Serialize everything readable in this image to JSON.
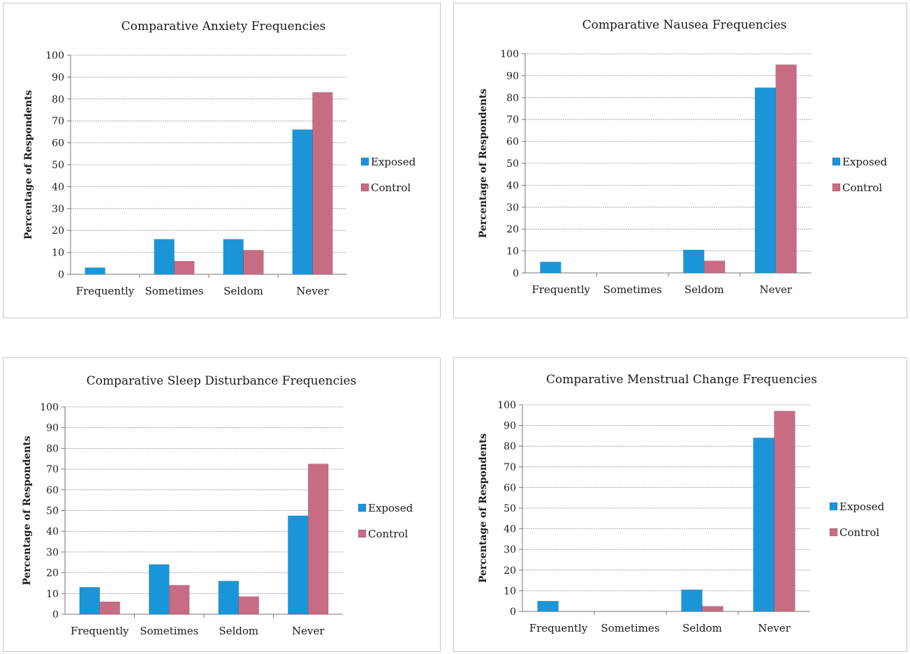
{
  "colors": {
    "exposed": "#1a96d8",
    "control": "#c86c86",
    "grid": "#9a9aaa",
    "axis": "#777777"
  },
  "chart_data": [
    {
      "type": "bar",
      "title": "Comparative Anxiety Frequencies",
      "ylabel": "Percentage of Respondents",
      "xlabel": "",
      "categories": [
        "Frequently",
        "Sometimes",
        "Seldom",
        "Never"
      ],
      "ylim": [
        0,
        100
      ],
      "yticks": [
        0,
        10,
        20,
        30,
        40,
        50,
        60,
        70,
        80,
        90,
        100
      ],
      "grid": true,
      "legend": "right",
      "series": [
        {
          "name": "Exposed",
          "values": [
            3,
            16,
            16,
            66
          ]
        },
        {
          "name": "Control",
          "values": [
            0,
            6,
            11,
            83
          ]
        }
      ]
    },
    {
      "type": "bar",
      "title": "Comparative Nausea Frequencies",
      "ylabel": "Percentage of Respondents",
      "xlabel": "",
      "categories": [
        "Frequently",
        "Sometimes",
        "Seldom",
        "Never"
      ],
      "ylim": [
        0,
        100
      ],
      "yticks": [
        0,
        10,
        20,
        30,
        40,
        50,
        60,
        70,
        80,
        90,
        100
      ],
      "grid": true,
      "legend": "right",
      "series": [
        {
          "name": "Exposed",
          "values": [
            5,
            0,
            10.5,
            84.5
          ]
        },
        {
          "name": "Control",
          "values": [
            0,
            0,
            5.5,
            95
          ]
        }
      ]
    },
    {
      "type": "bar",
      "title": "Comparative Sleep Disturbance Frequencies",
      "ylabel": "Percentage of Respondents",
      "xlabel": "",
      "categories": [
        "Frequently",
        "Sometimes",
        "Seldom",
        "Never"
      ],
      "ylim": [
        0,
        100
      ],
      "yticks": [
        0,
        10,
        20,
        30,
        40,
        50,
        60,
        70,
        80,
        90,
        100
      ],
      "grid": true,
      "legend": "right",
      "series": [
        {
          "name": "Exposed",
          "values": [
            13,
            24,
            16,
            47.5
          ]
        },
        {
          "name": "Control",
          "values": [
            6,
            14,
            8.5,
            72.5
          ]
        }
      ]
    },
    {
      "type": "bar",
      "title": "Comparative Menstrual Change Frequencies",
      "ylabel": "Percentage of Respondents",
      "xlabel": "",
      "categories": [
        "Frequently",
        "Sometimes",
        "Seldom",
        "Never"
      ],
      "ylim": [
        0,
        100
      ],
      "yticks": [
        0,
        10,
        20,
        30,
        40,
        50,
        60,
        70,
        80,
        90,
        100
      ],
      "grid": true,
      "legend": "right",
      "series": [
        {
          "name": "Exposed",
          "values": [
            5,
            0,
            10.5,
            84
          ]
        },
        {
          "name": "Control",
          "values": [
            0,
            0,
            2.5,
            97
          ]
        }
      ]
    }
  ]
}
